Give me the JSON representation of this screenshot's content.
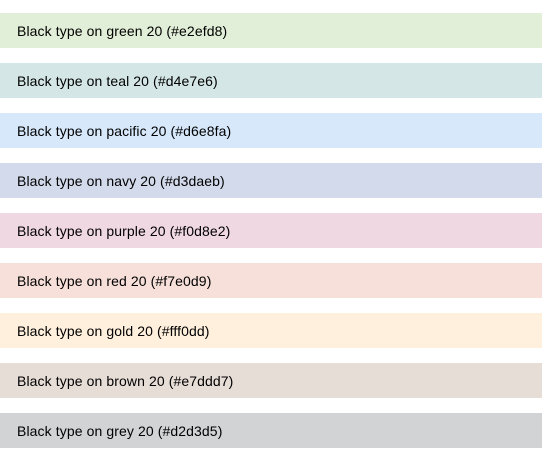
{
  "swatches": [
    {
      "label": "Black type on green 20 (#e2efd8)",
      "color": "#e2efd8"
    },
    {
      "label": "Black type on teal 20 (#d4e7e6)",
      "color": "#d4e7e6"
    },
    {
      "label": "Black type on pacific 20 (#d6e8fa)",
      "color": "#d6e8fa"
    },
    {
      "label": "Black type on navy 20 (#d3daeb)",
      "color": "#d3daeb"
    },
    {
      "label": "Black type on purple 20 (#f0d8e2)",
      "color": "#f0d8e2"
    },
    {
      "label": "Black type on red 20 (#f7e0d9)",
      "color": "#f7e0d9"
    },
    {
      "label": "Black type on gold 20 (#fff0dd)",
      "color": "#fff0dd"
    },
    {
      "label": "Black type on brown 20 (#e7ddd7)",
      "color": "#e7ddd7"
    },
    {
      "label": "Black type on grey 20 (#d2d3d5)",
      "color": "#d2d3d5"
    }
  ]
}
